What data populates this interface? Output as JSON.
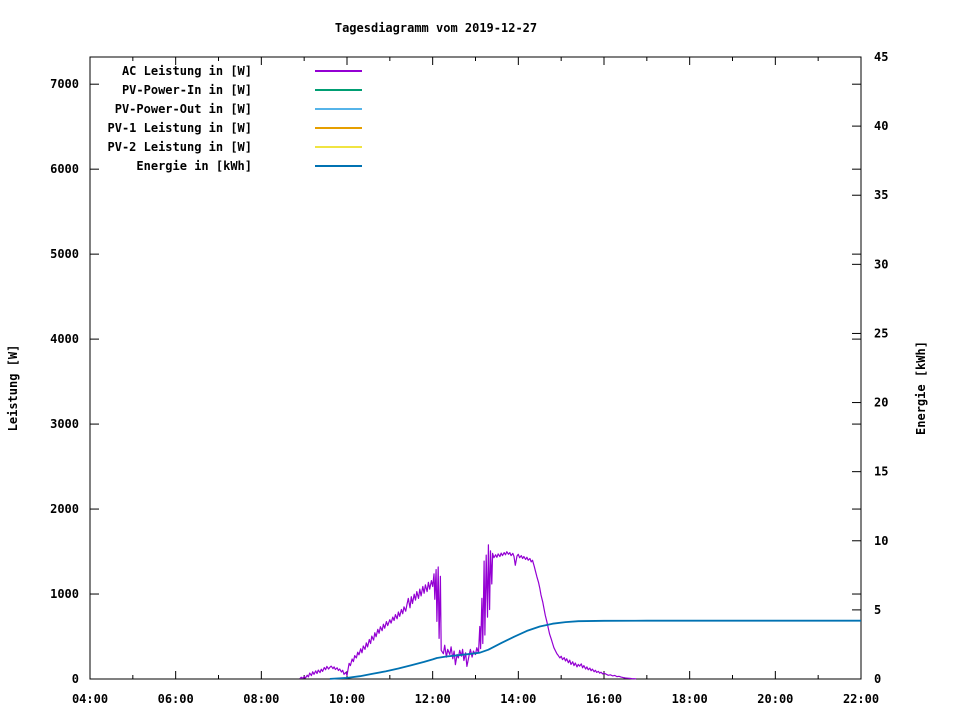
{
  "colors": {
    "background": "#ffffff",
    "foreground": "#000000",
    "ac_leistung": "#9400d3",
    "pv_power_in": "#009e73",
    "pv_power_out": "#56b4e9",
    "pv1_leistung": "#e69f00",
    "pv2_leistung": "#f0e442",
    "energie": "#0072b2"
  },
  "chart_data": {
    "type": "line",
    "title": "Tagesdiagramm vom 2019-12-27",
    "grid": false,
    "legend_position": "top-left-inside",
    "x": {
      "min": 4,
      "max": 22,
      "major_ticks": [
        {
          "t": 4,
          "label": "04:00"
        },
        {
          "t": 6,
          "label": "06:00"
        },
        {
          "t": 8,
          "label": "08:00"
        },
        {
          "t": 10,
          "label": "10:00"
        },
        {
          "t": 12,
          "label": "12:00"
        },
        {
          "t": 14,
          "label": "14:00"
        },
        {
          "t": 16,
          "label": "16:00"
        },
        {
          "t": 18,
          "label": "18:00"
        },
        {
          "t": 20,
          "label": "20:00"
        },
        {
          "t": 22,
          "label": "22:00"
        }
      ],
      "minor_ticks": [
        5,
        7,
        9,
        11,
        13,
        15,
        17,
        19,
        21
      ]
    },
    "y_left": {
      "label": "Leistung [W]",
      "min": 0,
      "max": 7320,
      "ticks": [
        {
          "v": 0,
          "label": "0"
        },
        {
          "v": 1000,
          "label": "1000"
        },
        {
          "v": 2000,
          "label": "2000"
        },
        {
          "v": 3000,
          "label": "3000"
        },
        {
          "v": 4000,
          "label": "4000"
        },
        {
          "v": 5000,
          "label": "5000"
        },
        {
          "v": 6000,
          "label": "6000"
        },
        {
          "v": 7000,
          "label": "7000"
        }
      ]
    },
    "y_right": {
      "label": "Energie [kWh]",
      "min": 0,
      "max": 45,
      "ticks": [
        {
          "v": 0,
          "label": "0"
        },
        {
          "v": 5,
          "label": "5"
        },
        {
          "v": 10,
          "label": "10"
        },
        {
          "v": 15,
          "label": "15"
        },
        {
          "v": 20,
          "label": "20"
        },
        {
          "v": 25,
          "label": "25"
        },
        {
          "v": 30,
          "label": "30"
        },
        {
          "v": 35,
          "label": "35"
        },
        {
          "v": 40,
          "label": "40"
        },
        {
          "v": 45,
          "label": "45"
        }
      ]
    },
    "series": [
      {
        "name": "AC Leistung in [W]",
        "color": "#9400d3",
        "axis": "left",
        "points": [
          [
            8.9,
            3
          ],
          [
            8.93,
            20
          ],
          [
            8.97,
            8
          ],
          [
            9.0,
            30
          ],
          [
            9.03,
            12
          ],
          [
            9.07,
            45
          ],
          [
            9.1,
            25
          ],
          [
            9.13,
            70
          ],
          [
            9.17,
            40
          ],
          [
            9.2,
            85
          ],
          [
            9.23,
            55
          ],
          [
            9.27,
            95
          ],
          [
            9.3,
            65
          ],
          [
            9.33,
            105
          ],
          [
            9.37,
            75
          ],
          [
            9.4,
            115
          ],
          [
            9.43,
            90
          ],
          [
            9.47,
            135
          ],
          [
            9.5,
            110
          ],
          [
            9.53,
            148
          ],
          [
            9.57,
            118
          ],
          [
            9.6,
            138
          ],
          [
            9.63,
            152
          ],
          [
            9.67,
            122
          ],
          [
            9.7,
            142
          ],
          [
            9.73,
            112
          ],
          [
            9.77,
            132
          ],
          [
            9.8,
            100
          ],
          [
            9.83,
            118
          ],
          [
            9.87,
            82
          ],
          [
            9.9,
            102
          ],
          [
            9.93,
            55
          ],
          [
            9.97,
            78
          ],
          [
            10.0,
            42
          ],
          [
            10.05,
            185
          ],
          [
            10.08,
            158
          ],
          [
            10.12,
            235
          ],
          [
            10.15,
            205
          ],
          [
            10.18,
            275
          ],
          [
            10.22,
            248
          ],
          [
            10.25,
            315
          ],
          [
            10.28,
            285
          ],
          [
            10.32,
            355
          ],
          [
            10.35,
            308
          ],
          [
            10.38,
            388
          ],
          [
            10.42,
            348
          ],
          [
            10.45,
            425
          ],
          [
            10.48,
            378
          ],
          [
            10.52,
            465
          ],
          [
            10.55,
            418
          ],
          [
            10.58,
            505
          ],
          [
            10.62,
            458
          ],
          [
            10.65,
            545
          ],
          [
            10.68,
            498
          ],
          [
            10.72,
            585
          ],
          [
            10.75,
            538
          ],
          [
            10.78,
            615
          ],
          [
            10.82,
            568
          ],
          [
            10.85,
            645
          ],
          [
            10.88,
            598
          ],
          [
            10.92,
            675
          ],
          [
            10.95,
            628
          ],
          [
            11.0,
            698
          ],
          [
            11.03,
            658
          ],
          [
            11.07,
            728
          ],
          [
            11.1,
            688
          ],
          [
            11.13,
            758
          ],
          [
            11.17,
            708
          ],
          [
            11.2,
            788
          ],
          [
            11.23,
            738
          ],
          [
            11.27,
            818
          ],
          [
            11.3,
            768
          ],
          [
            11.33,
            848
          ],
          [
            11.37,
            798
          ],
          [
            11.4,
            878
          ],
          [
            11.43,
            948
          ],
          [
            11.47,
            838
          ],
          [
            11.5,
            968
          ],
          [
            11.53,
            888
          ],
          [
            11.57,
            998
          ],
          [
            11.6,
            928
          ],
          [
            11.63,
            1028
          ],
          [
            11.67,
            948
          ],
          [
            11.7,
            1058
          ],
          [
            11.73,
            978
          ],
          [
            11.77,
            1088
          ],
          [
            11.8,
            1008
          ],
          [
            11.83,
            1108
          ],
          [
            11.87,
            1028
          ],
          [
            11.9,
            1138
          ],
          [
            11.93,
            1058
          ],
          [
            11.97,
            1158
          ],
          [
            12.0,
            1088
          ],
          [
            12.03,
            1238
          ],
          [
            12.05,
            938
          ],
          [
            12.08,
            1288
          ],
          [
            12.1,
            678
          ],
          [
            12.13,
            1318
          ],
          [
            12.15,
            478
          ],
          [
            12.18,
            1208
          ],
          [
            12.2,
            338
          ],
          [
            12.25,
            298
          ],
          [
            12.28,
            398
          ],
          [
            12.32,
            258
          ],
          [
            12.35,
            348
          ],
          [
            12.4,
            288
          ],
          [
            12.43,
            378
          ],
          [
            12.47,
            238
          ],
          [
            12.5,
            328
          ],
          [
            12.53,
            168
          ],
          [
            12.57,
            288
          ],
          [
            12.6,
            248
          ],
          [
            12.63,
            338
          ],
          [
            12.67,
            268
          ],
          [
            12.7,
            348
          ],
          [
            12.73,
            218
          ],
          [
            12.77,
            308
          ],
          [
            12.8,
            148
          ],
          [
            12.85,
            278
          ],
          [
            12.88,
            348
          ],
          [
            12.92,
            258
          ],
          [
            12.95,
            328
          ],
          [
            13.0,
            288
          ],
          [
            13.03,
            368
          ],
          [
            13.07,
            308
          ],
          [
            13.1,
            618
          ],
          [
            13.12,
            358
          ],
          [
            13.15,
            948
          ],
          [
            13.17,
            418
          ],
          [
            13.2,
            1388
          ],
          [
            13.22,
            518
          ],
          [
            13.25,
            1458
          ],
          [
            13.28,
            728
          ],
          [
            13.3,
            1578
          ],
          [
            13.33,
            818
          ],
          [
            13.35,
            1508
          ],
          [
            13.38,
            1118
          ],
          [
            13.4,
            1478
          ],
          [
            13.43,
            1428
          ],
          [
            13.47,
            1462
          ],
          [
            13.5,
            1432
          ],
          [
            13.53,
            1472
          ],
          [
            13.57,
            1442
          ],
          [
            13.6,
            1482
          ],
          [
            13.63,
            1452
          ],
          [
            13.67,
            1488
          ],
          [
            13.7,
            1462
          ],
          [
            13.73,
            1498
          ],
          [
            13.77,
            1468
          ],
          [
            13.8,
            1488
          ],
          [
            13.83,
            1452
          ],
          [
            13.87,
            1478
          ],
          [
            13.9,
            1442
          ],
          [
            13.93,
            1338
          ],
          [
            13.97,
            1448
          ],
          [
            14.0,
            1468
          ],
          [
            14.03,
            1428
          ],
          [
            14.07,
            1452
          ],
          [
            14.1,
            1418
          ],
          [
            14.13,
            1442
          ],
          [
            14.17,
            1408
          ],
          [
            14.2,
            1432
          ],
          [
            14.23,
            1398
          ],
          [
            14.27,
            1418
          ],
          [
            14.3,
            1378
          ],
          [
            14.33,
            1398
          ],
          [
            14.37,
            1328
          ],
          [
            14.4,
            1268
          ],
          [
            14.43,
            1208
          ],
          [
            14.47,
            1138
          ],
          [
            14.5,
            1068
          ],
          [
            14.53,
            988
          ],
          [
            14.57,
            908
          ],
          [
            14.6,
            828
          ],
          [
            14.63,
            748
          ],
          [
            14.67,
            668
          ],
          [
            14.7,
            598
          ],
          [
            14.73,
            528
          ],
          [
            14.77,
            468
          ],
          [
            14.8,
            418
          ],
          [
            14.83,
            368
          ],
          [
            14.87,
            328
          ],
          [
            14.9,
            298
          ],
          [
            14.93,
            278
          ],
          [
            14.97,
            248
          ],
          [
            15.0,
            268
          ],
          [
            15.03,
            228
          ],
          [
            15.07,
            252
          ],
          [
            15.1,
            212
          ],
          [
            15.13,
            238
          ],
          [
            15.17,
            192
          ],
          [
            15.2,
            222
          ],
          [
            15.23,
            172
          ],
          [
            15.27,
            202
          ],
          [
            15.3,
            158
          ],
          [
            15.33,
            188
          ],
          [
            15.37,
            142
          ],
          [
            15.4,
            172
          ],
          [
            15.43,
            152
          ],
          [
            15.47,
            178
          ],
          [
            15.5,
            132
          ],
          [
            15.53,
            158
          ],
          [
            15.57,
            118
          ],
          [
            15.6,
            142
          ],
          [
            15.63,
            108
          ],
          [
            15.67,
            128
          ],
          [
            15.7,
            98
          ],
          [
            15.73,
            116
          ],
          [
            15.77,
            86
          ],
          [
            15.8,
            102
          ],
          [
            15.83,
            78
          ],
          [
            15.87,
            90
          ],
          [
            15.9,
            68
          ],
          [
            15.93,
            80
          ],
          [
            15.97,
            60
          ],
          [
            16.0,
            70
          ],
          [
            16.05,
            56
          ],
          [
            16.1,
            44
          ],
          [
            16.15,
            50
          ],
          [
            16.2,
            36
          ],
          [
            16.25,
            42
          ],
          [
            16.3,
            28
          ],
          [
            16.35,
            32
          ],
          [
            16.4,
            22
          ],
          [
            16.45,
            16
          ],
          [
            16.5,
            12
          ],
          [
            16.55,
            9
          ],
          [
            16.6,
            7
          ],
          [
            16.65,
            5
          ],
          [
            16.7,
            3
          ],
          [
            16.75,
            2
          ]
        ]
      },
      {
        "name": "PV-Power-In in [W]",
        "color": "#009e73",
        "axis": "left",
        "points": []
      },
      {
        "name": "PV-Power-Out in [W]",
        "color": "#56b4e9",
        "axis": "left",
        "points": []
      },
      {
        "name": "PV-1 Leistung in [W]",
        "color": "#e69f00",
        "axis": "left",
        "points": []
      },
      {
        "name": "PV-2 Leistung in [W]",
        "color": "#f0e442",
        "axis": "left",
        "points": []
      },
      {
        "name": "Energie in [kWh]",
        "color": "#0072b2",
        "axis": "right",
        "points": [
          [
            9.6,
            0.01
          ],
          [
            10.0,
            0.08
          ],
          [
            10.3,
            0.2
          ],
          [
            10.6,
            0.38
          ],
          [
            10.9,
            0.55
          ],
          [
            11.2,
            0.76
          ],
          [
            11.5,
            1.0
          ],
          [
            11.8,
            1.24
          ],
          [
            12.0,
            1.42
          ],
          [
            12.1,
            1.52
          ],
          [
            12.3,
            1.62
          ],
          [
            12.6,
            1.72
          ],
          [
            12.9,
            1.82
          ],
          [
            13.1,
            1.9
          ],
          [
            13.3,
            2.12
          ],
          [
            13.6,
            2.6
          ],
          [
            13.9,
            3.05
          ],
          [
            14.2,
            3.48
          ],
          [
            14.5,
            3.8
          ],
          [
            14.8,
            4.0
          ],
          [
            15.1,
            4.12
          ],
          [
            15.4,
            4.18
          ],
          [
            16.0,
            4.21
          ],
          [
            17.0,
            4.22
          ],
          [
            22.0,
            4.22
          ]
        ]
      }
    ]
  }
}
